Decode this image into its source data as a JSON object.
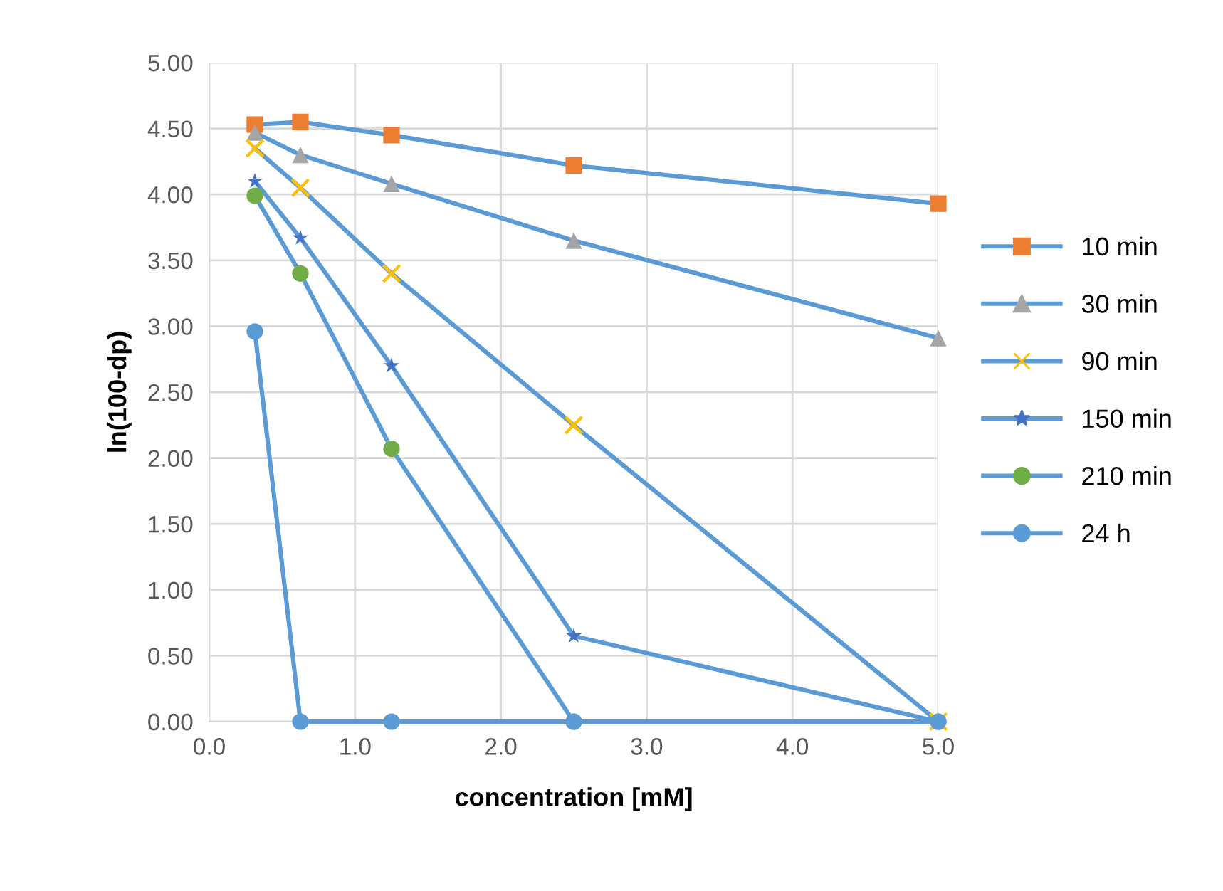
{
  "chart_data": {
    "type": "line",
    "xlabel": "concentration [mM]",
    "ylabel": "ln(100-dp)",
    "x": [
      0.3125,
      0.625,
      1.25,
      2.5,
      5.0
    ],
    "series": [
      {
        "name": "10 min",
        "color": "#5b9bd5",
        "colors": [
          "#ed7d31",
          "#ed7d31",
          "#ed7d31",
          "#ed7d31",
          "#ed7d31"
        ],
        "marker": "square",
        "values": [
          4.53,
          4.55,
          4.45,
          4.22,
          3.93
        ]
      },
      {
        "name": "30 min",
        "color": "#5b9bd5",
        "colors": [
          "#a5a5a5",
          "#a5a5a5",
          "#a5a5a5",
          "#a5a5a5",
          "#a5a5a5"
        ],
        "marker": "triangle",
        "values": [
          4.47,
          4.3,
          4.08,
          3.65,
          2.91
        ]
      },
      {
        "name": "90 min",
        "color": "#5b9bd5",
        "colors": [
          "#ffc000",
          "#ffc000",
          "#ffc000",
          "#ffc000",
          "#ffc000"
        ],
        "marker": "cross",
        "values": [
          4.35,
          4.05,
          3.4,
          2.25,
          0
        ]
      },
      {
        "name": "150 min",
        "color": "#5b9bd5",
        "colors": [
          "#4472c4",
          "#4472c4",
          "#4472c4",
          "#4472c4",
          "#4472c4"
        ],
        "marker": "star",
        "values": [
          4.1,
          3.67,
          2.7,
          0.65,
          0
        ]
      },
      {
        "name": "210 min",
        "color": "#5b9bd5",
        "colors": [
          "#70ad47",
          "#70ad47",
          "#70ad47",
          "#70ad47",
          "#70ad47"
        ],
        "marker": "circle",
        "values": [
          3.99,
          3.4,
          2.07,
          0,
          0
        ]
      },
      {
        "name": "24 h",
        "color": "#5b9bd5",
        "colors": [
          "#5b9bd5",
          "#5b9bd5",
          "#5b9bd5",
          "#5b9bd5",
          "#5b9bd5"
        ],
        "marker": "circle",
        "values": [
          2.96,
          0,
          0,
          0,
          0
        ]
      }
    ],
    "xlim": [
      0,
      5
    ],
    "xticks": [
      {
        "value": 0,
        "label": "0.0"
      },
      {
        "value": 1,
        "label": "1.0"
      },
      {
        "value": 2,
        "label": "2.0"
      },
      {
        "value": 3,
        "label": "3.0"
      },
      {
        "value": 4,
        "label": "4.0"
      },
      {
        "value": 5,
        "label": "5.0"
      }
    ],
    "ylim": [
      0,
      5
    ],
    "yticks": [
      {
        "value": 0,
        "label": "0.00"
      },
      {
        "value": 0.5,
        "label": "0.50"
      },
      {
        "value": 1,
        "label": "1.00"
      },
      {
        "value": 1.5,
        "label": "1.50"
      },
      {
        "value": 2,
        "label": "2.00"
      },
      {
        "value": 2.5,
        "label": "2.50"
      },
      {
        "value": 3,
        "label": "3.00"
      },
      {
        "value": 3.5,
        "label": "3.50"
      },
      {
        "value": 4,
        "label": "4.00"
      },
      {
        "value": 4.5,
        "label": "4.50"
      },
      {
        "value": 5,
        "label": "5.00"
      }
    ],
    "grid": true,
    "legend": "right",
    "line_style": "solid"
  }
}
